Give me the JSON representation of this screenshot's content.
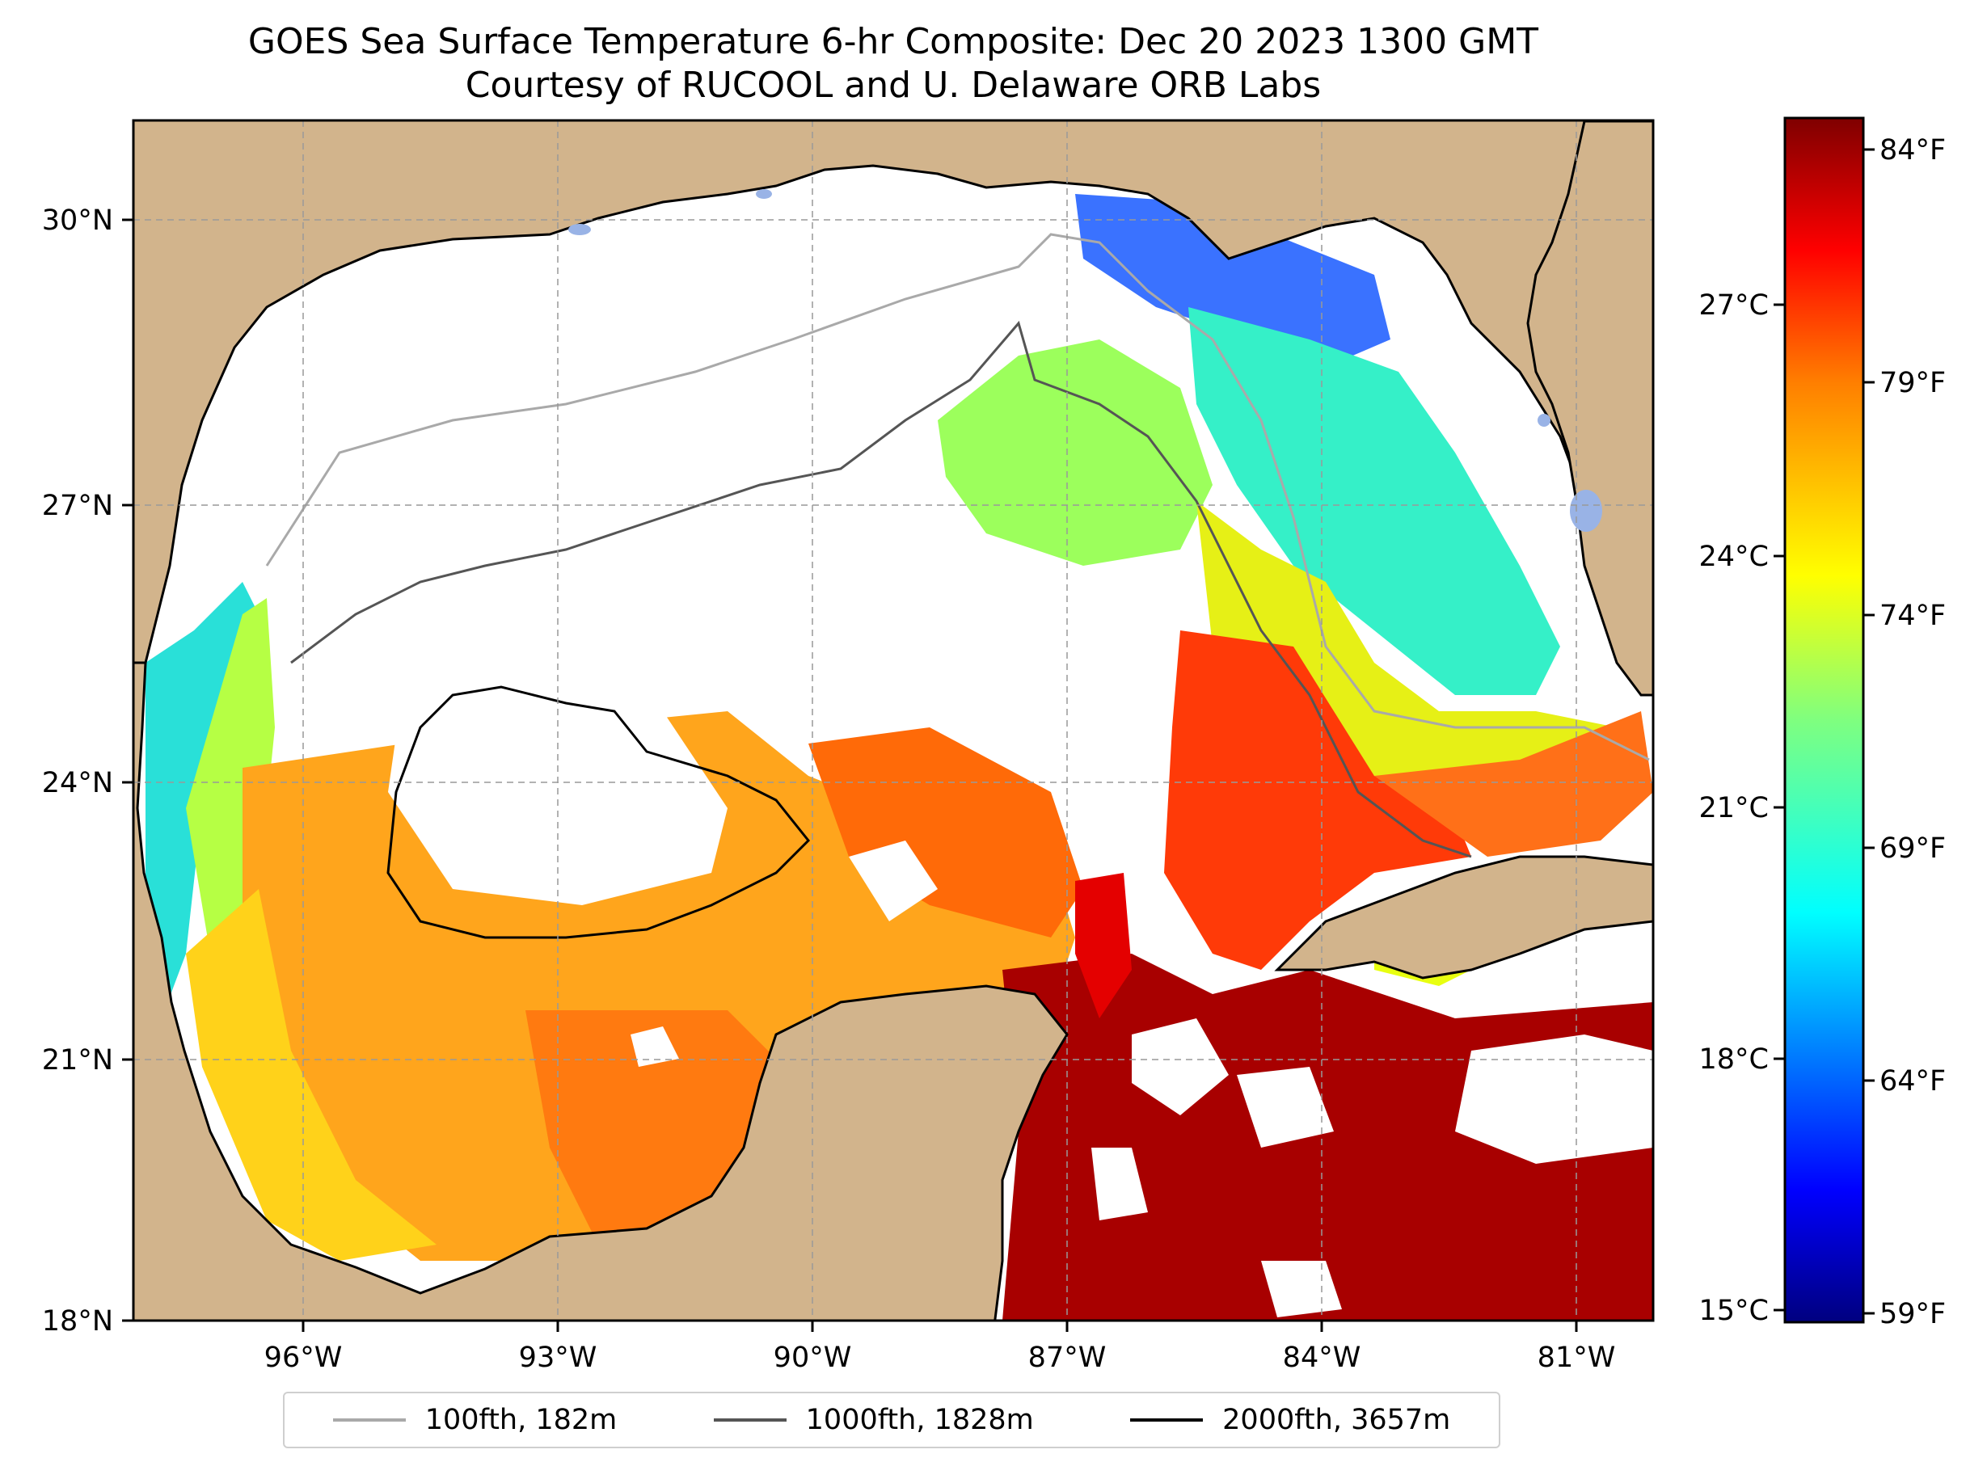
{
  "title": {
    "line1": "GOES Sea Surface Temperature 6-hr Composite: Dec 20 2023 1300 GMT",
    "line2": "Courtesy of RUCOOL and U. Delaware ORB Labs"
  },
  "map": {
    "region": "Gulf of Mexico",
    "lon_range": [
      -98,
      -80
    ],
    "lat_range": [
      18,
      31
    ],
    "lon_ticks": [
      "96°W",
      "93°W",
      "90°W",
      "87°W",
      "84°W",
      "81°W"
    ],
    "lat_ticks": [
      "18°N",
      "21°N",
      "24°N",
      "27°N",
      "30°N"
    ],
    "land_color": "#d2b48c",
    "no_data_color": "#ffffff",
    "lake_color": "#99b3e6",
    "grid": "dashed"
  },
  "colorbar": {
    "colormap": "jet",
    "celsius_range": [
      15,
      29
    ],
    "celsius_ticks": [
      "27°C",
      "24°C",
      "21°C",
      "18°C",
      "15°C"
    ],
    "fahrenheit_ticks": [
      "84°F",
      "79°F",
      "74°F",
      "69°F",
      "64°F",
      "59°F"
    ]
  },
  "legend": {
    "items": [
      {
        "label": "100fth, 182m",
        "color": "#a9a9a9"
      },
      {
        "label": "1000fth, 1828m",
        "color": "#555555"
      },
      {
        "label": "2000fth, 3657m",
        "color": "#000000"
      }
    ]
  }
}
